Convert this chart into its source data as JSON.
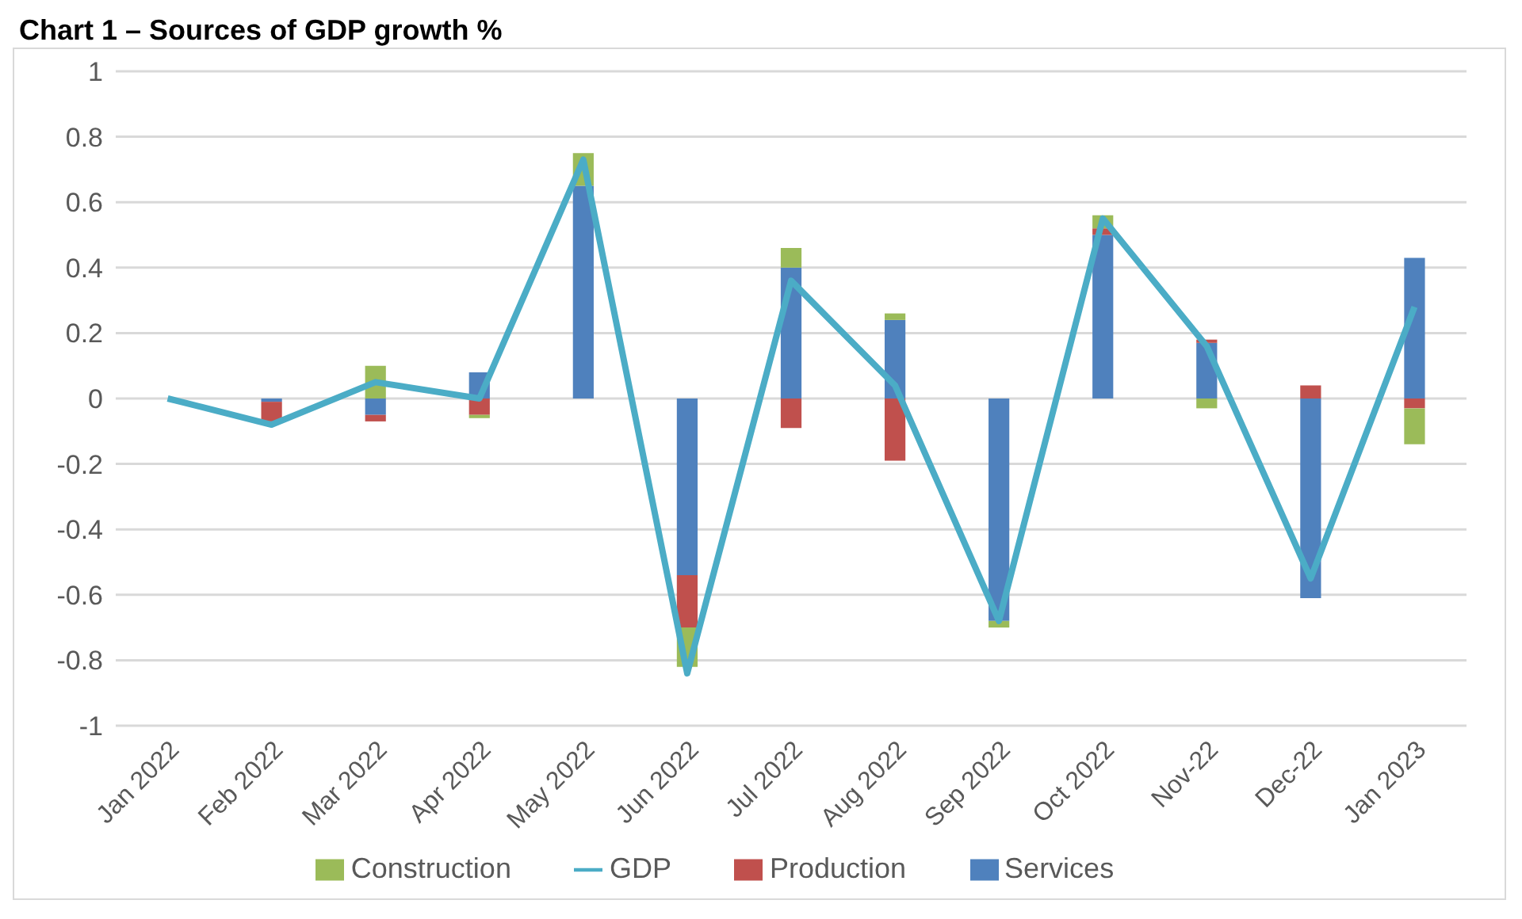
{
  "chart_data": {
    "type": "bar",
    "title": "Chart 1 – Sources of GDP growth %",
    "stacked": true,
    "categories": [
      "Jan 2022",
      "Feb 2022",
      "Mar 2022",
      "Apr 2022",
      "May 2022",
      "Jun 2022",
      "Jul 2022",
      "Aug 2022",
      "Sep 2022",
      "Oct 2022",
      "Nov-22",
      "Dec-22",
      "Jan 2023"
    ],
    "series": [
      {
        "name": "Services",
        "color": "#4f81bd",
        "values": [
          0,
          -0.01,
          -0.05,
          0.08,
          0.65,
          -0.54,
          0.4,
          0.24,
          -0.68,
          0.5,
          0.17,
          -0.61,
          0.43
        ]
      },
      {
        "name": "Production",
        "color": "#c0504d",
        "values": [
          0,
          -0.06,
          -0.02,
          -0.05,
          0,
          -0.16,
          -0.09,
          -0.19,
          0,
          0.02,
          0.01,
          0.04,
          -0.03
        ]
      },
      {
        "name": "Construction",
        "color": "#9bbb59",
        "values": [
          0,
          0,
          0.1,
          -0.01,
          0.1,
          -0.12,
          0.06,
          0.02,
          -0.02,
          0.04,
          -0.03,
          0,
          -0.11
        ]
      },
      {
        "name": "GDP",
        "type": "line",
        "color": "#4bacc6",
        "values": [
          0,
          -0.08,
          0.05,
          0,
          0.73,
          -0.84,
          0.36,
          0.04,
          -0.68,
          0.55,
          0.16,
          -0.55,
          0.28
        ]
      }
    ],
    "ylim": [
      -1,
      1
    ],
    "yticks": [
      -1,
      -0.8,
      -0.6,
      -0.4,
      -0.2,
      0,
      0.2,
      0.4,
      0.6,
      0.8,
      1
    ],
    "grid": "y",
    "legend": "bottom",
    "marker": "none"
  }
}
